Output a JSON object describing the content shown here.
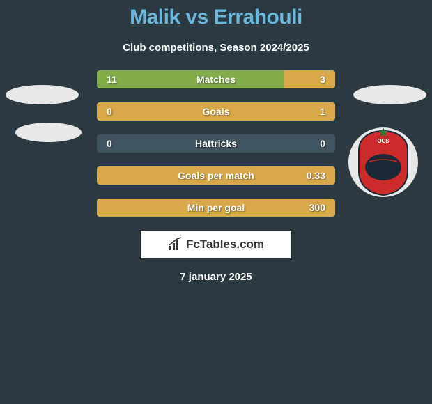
{
  "title": "Malik vs Errahouli",
  "subtitle": "Club competitions, Season 2024/2025",
  "date": "7 january 2025",
  "logo_text": "FcTables.com",
  "colors": {
    "bg": "#2a3942",
    "title": "#6bb8dd",
    "left_bar": "#81ad4a",
    "right_bar": "#d8a94a",
    "neutral_bar": "#415560",
    "badge_red": "#cc2b2b",
    "badge_navy": "#1a2838"
  },
  "bars": [
    {
      "label": "Matches",
      "left_val": "11",
      "right_val": "3",
      "left_pct": 78.6,
      "right_pct": 21.4,
      "left_color": "#81ad4a",
      "right_color": "#d8a94a"
    },
    {
      "label": "Goals",
      "left_val": "0",
      "right_val": "1",
      "left_pct": 0,
      "right_pct": 100,
      "left_color": "#81ad4a",
      "right_color": "#d8a94a"
    },
    {
      "label": "Hattricks",
      "left_val": "0",
      "right_val": "0",
      "left_pct": 0,
      "right_pct": 0,
      "left_color": "#415560",
      "right_color": "#415560"
    },
    {
      "label": "Goals per match",
      "left_val": "",
      "right_val": "0.33",
      "left_pct": 0,
      "right_pct": 100,
      "left_color": "#81ad4a",
      "right_color": "#d8a94a"
    },
    {
      "label": "Min per goal",
      "left_val": "",
      "right_val": "300",
      "left_pct": 0,
      "right_pct": 100,
      "left_color": "#81ad4a",
      "right_color": "#d8a94a"
    }
  ]
}
